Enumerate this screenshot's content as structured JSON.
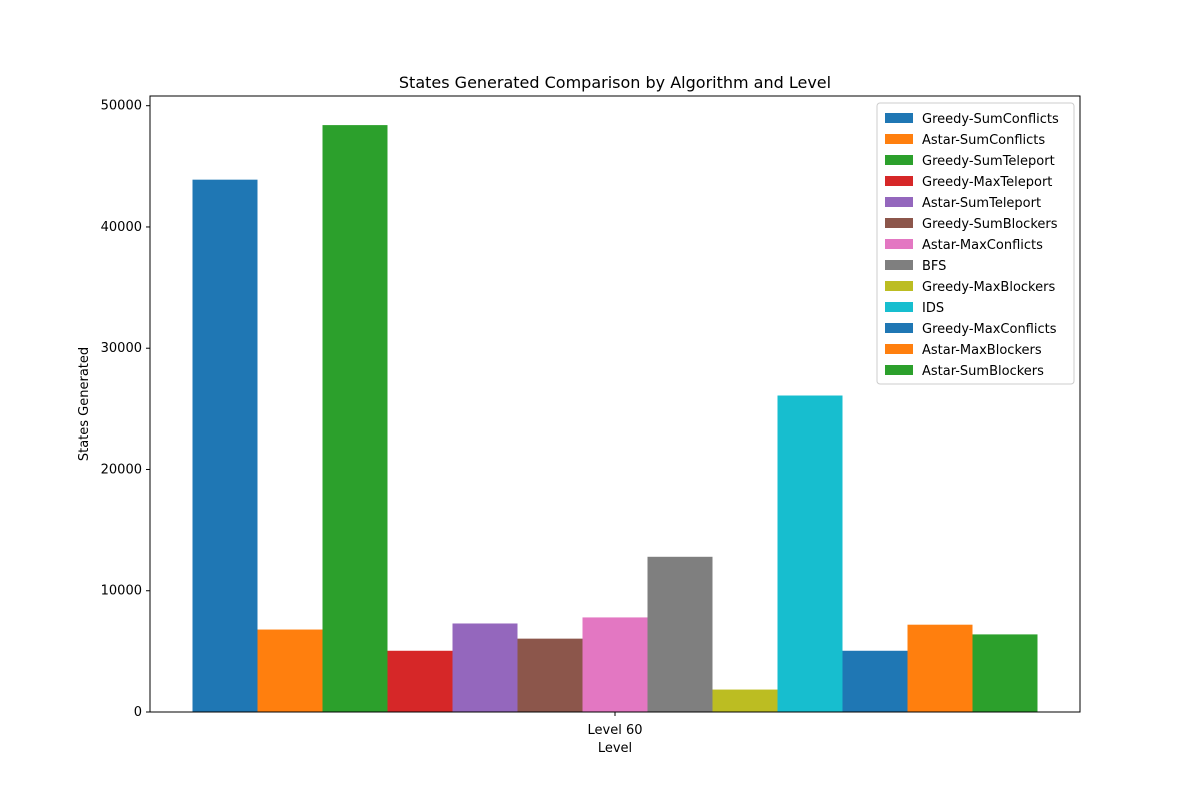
{
  "chart_data": {
    "type": "bar",
    "title": "States Generated Comparison by Algorithm and Level",
    "xlabel": "Level",
    "ylabel": "States Generated",
    "categories": [
      "Level 60"
    ],
    "ylim": [
      0,
      50000
    ],
    "yticks": [
      0,
      10000,
      20000,
      30000,
      40000,
      50000
    ],
    "ytick_labels": [
      "0",
      "10000",
      "20000",
      "30000",
      "40000",
      "50000"
    ],
    "legend_position": "top-right",
    "grid": false,
    "series": [
      {
        "name": "Greedy-SumConflicts",
        "color": "#1f77b4",
        "values": [
          43900
        ]
      },
      {
        "name": "Astar-SumConflicts",
        "color": "#ff7f0e",
        "values": [
          6800
        ]
      },
      {
        "name": "Greedy-SumTeleport",
        "color": "#2ca02c",
        "values": [
          48400
        ]
      },
      {
        "name": "Greedy-MaxTeleport",
        "color": "#d62728",
        "values": [
          5050
        ]
      },
      {
        "name": "Astar-SumTeleport",
        "color": "#9467bd",
        "values": [
          7300
        ]
      },
      {
        "name": "Greedy-SumBlockers",
        "color": "#8c564b",
        "values": [
          6050
        ]
      },
      {
        "name": "Astar-MaxConflicts",
        "color": "#e377c2",
        "values": [
          7800
        ]
      },
      {
        "name": "BFS",
        "color": "#7f7f7f",
        "values": [
          12800
        ]
      },
      {
        "name": "Greedy-MaxBlockers",
        "color": "#bcbd22",
        "values": [
          1850
        ]
      },
      {
        "name": "IDS",
        "color": "#17becf",
        "values": [
          26100
        ]
      },
      {
        "name": "Greedy-MaxConflicts",
        "color": "#1f77b4",
        "values": [
          5050
        ]
      },
      {
        "name": "Astar-MaxBlockers",
        "color": "#ff7f0e",
        "values": [
          7200
        ]
      },
      {
        "name": "Astar-SumBlockers",
        "color": "#2ca02c",
        "values": [
          6400
        ]
      }
    ]
  }
}
